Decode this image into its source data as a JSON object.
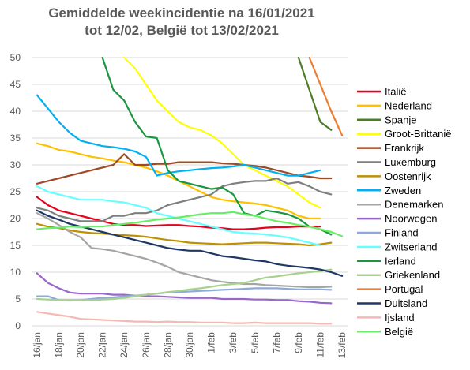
{
  "chart_data": {
    "type": "line",
    "title": "Gemiddelde weekincidentie  na 16/01/2021 tot 12/02, België tot 13/02/2021",
    "title_line1": "Gemiddelde weekincidentie  na 16/01/2021",
    "title_line2": "tot 12/02, België tot 13/02/2021",
    "xlabel": "",
    "ylabel": "",
    "ylim": [
      0,
      50
    ],
    "yticks": [
      0,
      5,
      10,
      15,
      20,
      25,
      30,
      35,
      40,
      45,
      50
    ],
    "x": [
      "16/jan",
      "17/jan",
      "18/jan",
      "19/jan",
      "20/jan",
      "21/jan",
      "22/jan",
      "23/jan",
      "24/jan",
      "25/jan",
      "26/jan",
      "27/jan",
      "28/jan",
      "29/jan",
      "30/jan",
      "31/jan",
      "1/feb",
      "2/feb",
      "3/feb",
      "4/feb",
      "5/feb",
      "6/feb",
      "7/feb",
      "8/feb",
      "9/feb",
      "10/feb",
      "11/feb",
      "12/feb",
      "13/feb"
    ],
    "xtick_labels": [
      "16/jan",
      "18/jan",
      "20/jan",
      "22/jan",
      "24/jan",
      "26/jan",
      "28/jan",
      "30/jan",
      "1/feb",
      "3/feb",
      "5/feb",
      "7/feb",
      "9/feb",
      "11/feb",
      "13/feb"
    ],
    "grid": true,
    "legend_position": "right",
    "series": [
      {
        "name": "Italië",
        "color": "#e8001c",
        "values": [
          24,
          22.5,
          21.5,
          21,
          20.5,
          20,
          19.5,
          19,
          18.8,
          18.8,
          18.6,
          18.7,
          18.8,
          18.8,
          18.6,
          18.5,
          18.3,
          18.2,
          18,
          18,
          18.1,
          18.3,
          18.4,
          18.4,
          18.5,
          18.5,
          18.5,
          null,
          null
        ]
      },
      {
        "name": "Nederland",
        "color": "#ffc000",
        "values": [
          34,
          33.5,
          32.8,
          32.5,
          32,
          31.5,
          31.2,
          30.8,
          30.5,
          30,
          29.5,
          28.8,
          28,
          27,
          26,
          25,
          24,
          23.5,
          23.2,
          23,
          22.8,
          22.5,
          22,
          21.5,
          20.5,
          20,
          20,
          null,
          null
        ]
      },
      {
        "name": "Spanje",
        "color": "#4c7c24",
        "values": [
          null,
          null,
          null,
          null,
          null,
          null,
          null,
          null,
          null,
          null,
          null,
          null,
          null,
          null,
          null,
          null,
          null,
          null,
          null,
          null,
          null,
          null,
          null,
          null,
          50,
          44,
          38,
          36.5,
          null
        ]
      },
      {
        "name": "Groot-Brittanië",
        "color": "#ffff00",
        "values": [
          null,
          null,
          null,
          null,
          null,
          null,
          null,
          null,
          50,
          48,
          45,
          42,
          40,
          38,
          37,
          36.5,
          35.5,
          34,
          32,
          30,
          29,
          28,
          27,
          26,
          24.5,
          23,
          22,
          null,
          null
        ]
      },
      {
        "name": "Frankrijk",
        "color": "#9e4a24",
        "values": [
          26.5,
          27,
          27.5,
          28,
          28.5,
          29,
          29.5,
          30,
          32,
          30,
          30,
          30.2,
          30.2,
          30.5,
          30.5,
          30.5,
          30.5,
          30.3,
          30.2,
          30,
          29.8,
          29.5,
          29,
          28.5,
          28,
          27.8,
          27.5,
          27.5,
          null
        ]
      },
      {
        "name": "Luxemburg",
        "color": "#7f7f7f",
        "values": [
          22,
          21.5,
          20.5,
          20,
          19.5,
          19.5,
          19.5,
          20.5,
          20.5,
          21,
          21,
          21.5,
          22.5,
          23,
          23.5,
          24,
          24.5,
          26,
          26.5,
          26.8,
          27,
          27,
          27.5,
          26.5,
          26.8,
          26,
          25,
          24.5,
          null
        ]
      },
      {
        "name": "Oostenrijk",
        "color": "#bf9000",
        "values": [
          19,
          18.5,
          18.2,
          17.8,
          17.5,
          17.3,
          17.2,
          17,
          16.9,
          16.8,
          16.6,
          16.3,
          16,
          15.8,
          15.5,
          15.4,
          15.3,
          15.2,
          15.3,
          15.4,
          15.5,
          15.5,
          15.4,
          15.3,
          15.2,
          15,
          15.2,
          15.5,
          null
        ]
      },
      {
        "name": "Zweden",
        "color": "#00b0f0",
        "values": [
          43,
          40.5,
          38,
          36,
          34.5,
          34,
          33.5,
          33.3,
          33,
          32.5,
          31.5,
          28,
          28.5,
          28.8,
          29,
          29.2,
          29.4,
          29.5,
          29.7,
          30,
          29.5,
          29,
          28.5,
          28,
          28,
          28.5,
          29,
          null,
          null
        ]
      },
      {
        "name": "Denemarken",
        "color": "#a5a5a5",
        "values": [
          21,
          20,
          18.8,
          17.5,
          16.5,
          14.5,
          14.3,
          14,
          13.5,
          13,
          12.5,
          11.8,
          11,
          10,
          9.5,
          9,
          8.5,
          8.2,
          8,
          7.8,
          7.8,
          7.6,
          7.5,
          7.4,
          7.3,
          7.2,
          7.2,
          7.3,
          null
        ]
      },
      {
        "name": "Noorwegen",
        "color": "#9966cc",
        "values": [
          9.8,
          8,
          7,
          6.2,
          6,
          6,
          6,
          5.8,
          5.8,
          5.6,
          5.5,
          5.5,
          5.4,
          5.3,
          5.2,
          5.2,
          5.2,
          5,
          5,
          5,
          4.9,
          4.9,
          4.8,
          4.8,
          4.6,
          4.5,
          4.3,
          4.2,
          null
        ]
      },
      {
        "name": "Finland",
        "color": "#8eaadb",
        "values": [
          5.5,
          5.5,
          4.8,
          4.7,
          4.8,
          5,
          5.2,
          5.3,
          5.5,
          5.6,
          5.8,
          6,
          6.2,
          6.3,
          6.4,
          6.5,
          6.6,
          6.7,
          6.8,
          6.9,
          7,
          7,
          7,
          6.9,
          6.8,
          6.8,
          6.8,
          6.7,
          null
        ]
      },
      {
        "name": "Zwitserland",
        "color": "#66ffff",
        "values": [
          26,
          25,
          24.5,
          24,
          23.5,
          23.5,
          23.5,
          23.2,
          23,
          22.5,
          22,
          21,
          20.5,
          20,
          19.5,
          19,
          18.5,
          18,
          17.5,
          17.3,
          17.2,
          17,
          16.8,
          16.5,
          16,
          15.5,
          15,
          null,
          null
        ]
      },
      {
        "name": "Ierland",
        "color": "#1a9641",
        "values": [
          null,
          null,
          null,
          null,
          null,
          null,
          50,
          44,
          42,
          38,
          35.3,
          35,
          29,
          27,
          26.5,
          26,
          25.5,
          25.8,
          24.5,
          21,
          20.5,
          21.5,
          21.2,
          20.8,
          20,
          18.5,
          18,
          17,
          null
        ]
      },
      {
        "name": "Griekenland",
        "color": "#a9d18e",
        "values": [
          5,
          4.9,
          4.8,
          4.8,
          4.8,
          4.8,
          4.9,
          5,
          5.2,
          5.5,
          5.8,
          6,
          6.3,
          6.5,
          6.8,
          7,
          7.3,
          7.6,
          7.8,
          8,
          8.5,
          9,
          9.2,
          9.5,
          9.8,
          10,
          10.2,
          10.5,
          null
        ]
      },
      {
        "name": "Portugal",
        "color": "#ed7d31",
        "values": [
          null,
          null,
          null,
          null,
          null,
          null,
          null,
          null,
          null,
          null,
          null,
          null,
          null,
          null,
          null,
          null,
          null,
          null,
          null,
          null,
          null,
          null,
          null,
          null,
          null,
          50,
          45,
          40,
          35.5
        ]
      },
      {
        "name": "Duitsland",
        "color": "#203864",
        "values": [
          21.5,
          20.5,
          19.8,
          19,
          18.5,
          18,
          17.5,
          17,
          16.5,
          16,
          15.5,
          15,
          14.5,
          14.2,
          14,
          14,
          13.5,
          13,
          12.8,
          12.5,
          12.2,
          12,
          11.5,
          11.2,
          11,
          10.8,
          10.5,
          10,
          9.3
        ]
      },
      {
        "name": "Ijsland",
        "color": "#f4b9b2",
        "values": [
          2.6,
          2.3,
          2,
          1.7,
          1.3,
          1.2,
          1.1,
          1,
          0.9,
          0.8,
          0.8,
          0.7,
          0.8,
          0.7,
          0.7,
          0.6,
          0.6,
          0.6,
          0.5,
          0.5,
          0.6,
          0.5,
          0.5,
          0.5,
          0.5,
          0.5,
          0.4,
          0.4,
          null
        ]
      },
      {
        "name": "België",
        "color": "#66ee66",
        "values": [
          18,
          18.2,
          18.3,
          18.5,
          18.4,
          18.5,
          18.5,
          18.8,
          19,
          19.2,
          19.5,
          19.8,
          20,
          20.2,
          20.5,
          20.8,
          21,
          21,
          21.2,
          20.8,
          20.5,
          20,
          19.5,
          19.2,
          18.8,
          18.5,
          18,
          17.5,
          16.7
        ]
      }
    ]
  }
}
